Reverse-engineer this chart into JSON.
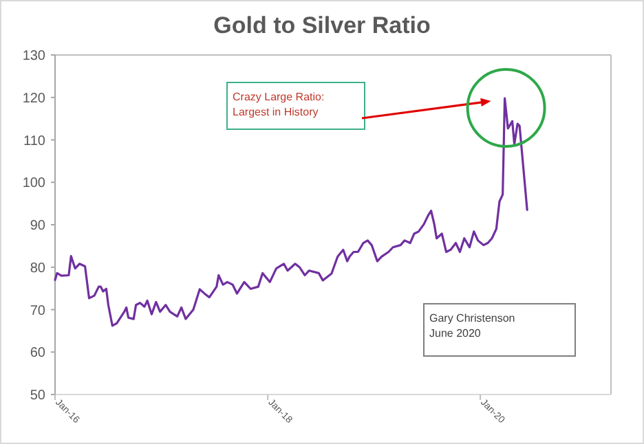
{
  "chart_data": {
    "type": "line",
    "title": "Gold to Silver Ratio",
    "x": [
      "2016-01-01",
      "2016-01-08",
      "2016-01-23",
      "2016-02-17",
      "2016-02-25",
      "2016-03-10",
      "2016-03-25",
      "2016-04-13",
      "2016-04-27",
      "2016-05-15",
      "2016-05-30",
      "2016-06-06",
      "2016-06-14",
      "2016-06-25",
      "2016-07-02",
      "2016-07-16",
      "2016-07-31",
      "2016-08-25",
      "2016-09-02",
      "2016-09-09",
      "2016-09-27",
      "2016-10-05",
      "2016-10-19",
      "2016-11-03",
      "2016-11-13",
      "2016-11-28",
      "2016-12-13",
      "2016-12-27",
      "2017-01-15",
      "2017-01-30",
      "2017-02-24",
      "2017-03-10",
      "2017-03-25",
      "2017-04-20",
      "2017-05-12",
      "2017-05-30",
      "2017-06-14",
      "2017-07-09",
      "2017-07-16",
      "2017-07-31",
      "2017-08-15",
      "2017-09-02",
      "2017-09-17",
      "2017-10-12",
      "2017-11-03",
      "2017-11-29",
      "2017-12-14",
      "2018-01-08",
      "2018-01-30",
      "2018-02-25",
      "2018-03-10",
      "2018-04-05",
      "2018-04-20",
      "2018-05-08",
      "2018-05-23",
      "2018-06-25",
      "2018-07-09",
      "2018-08-08",
      "2018-08-29",
      "2018-09-17",
      "2018-10-01",
      "2018-10-09",
      "2018-10-23",
      "2018-11-07",
      "2018-11-25",
      "2018-12-10",
      "2018-12-24",
      "2019-01-12",
      "2019-01-27",
      "2019-02-20",
      "2019-03-07",
      "2019-04-02",
      "2019-04-16",
      "2019-05-05",
      "2019-05-19",
      "2019-06-03",
      "2019-06-21",
      "2019-07-06",
      "2019-07-16",
      "2019-07-27",
      "2019-08-04",
      "2019-08-22",
      "2019-09-06",
      "2019-09-21",
      "2019-10-09",
      "2019-10-23",
      "2019-11-07",
      "2019-11-25",
      "2019-12-10",
      "2019-12-24",
      "2020-01-12",
      "2020-01-27",
      "2020-02-10",
      "2020-02-25",
      "2020-03-07",
      "2020-03-18",
      "2020-03-25",
      "2020-04-05",
      "2020-04-20",
      "2020-04-27",
      "2020-05-08",
      "2020-05-15",
      "2020-06-10"
    ],
    "series": [
      {
        "color": "#7030a0",
        "values": [
          77.0,
          78.6,
          78.0,
          78.1,
          82.6,
          79.7,
          80.8,
          80.2,
          72.7,
          73.3,
          75.4,
          75.4,
          74.3,
          74.9,
          71.1,
          66.2,
          66.8,
          69.4,
          70.5,
          68.1,
          67.8,
          71.1,
          71.6,
          70.7,
          72.1,
          68.9,
          71.8,
          69.5,
          71.1,
          69.5,
          68.4,
          70.5,
          67.8,
          70.0,
          74.8,
          73.7,
          72.9,
          75.4,
          78.1,
          75.9,
          76.5,
          75.9,
          73.8,
          76.5,
          74.9,
          75.4,
          78.6,
          76.5,
          79.7,
          80.8,
          79.2,
          80.8,
          80.0,
          78.1,
          79.2,
          78.6,
          76.9,
          78.5,
          82.5,
          84.1,
          81.4,
          82.5,
          83.6,
          83.6,
          85.7,
          86.3,
          85.2,
          81.4,
          82.5,
          83.6,
          84.7,
          85.2,
          86.3,
          85.7,
          87.9,
          88.4,
          90.1,
          92.2,
          93.3,
          90.1,
          86.8,
          87.9,
          83.6,
          84.1,
          85.7,
          83.6,
          86.8,
          84.7,
          88.4,
          86.3,
          85.2,
          85.7,
          86.8,
          89.0,
          95.5,
          97.1,
          119.8,
          112.7,
          114.4,
          109.0,
          113.8,
          113.3,
          93.5
        ]
      }
    ],
    "xlim": [
      "2016-01-01",
      "2021-03-25"
    ],
    "xticks": [
      {
        "value": "2016-01-01",
        "label": "Jan-16"
      },
      {
        "value": "2018-01-01",
        "label": "Jan-18"
      },
      {
        "value": "2020-01-01",
        "label": "Jan-20"
      }
    ],
    "ylim": [
      50,
      130
    ],
    "yticks": [
      50,
      60,
      70,
      80,
      90,
      100,
      110,
      120,
      130
    ],
    "grid": false,
    "line_style": "solid",
    "annotations": [
      "Crazy Large Ratio:\nLargest in History",
      "Gary Christenson\nJune 2020"
    ]
  }
}
